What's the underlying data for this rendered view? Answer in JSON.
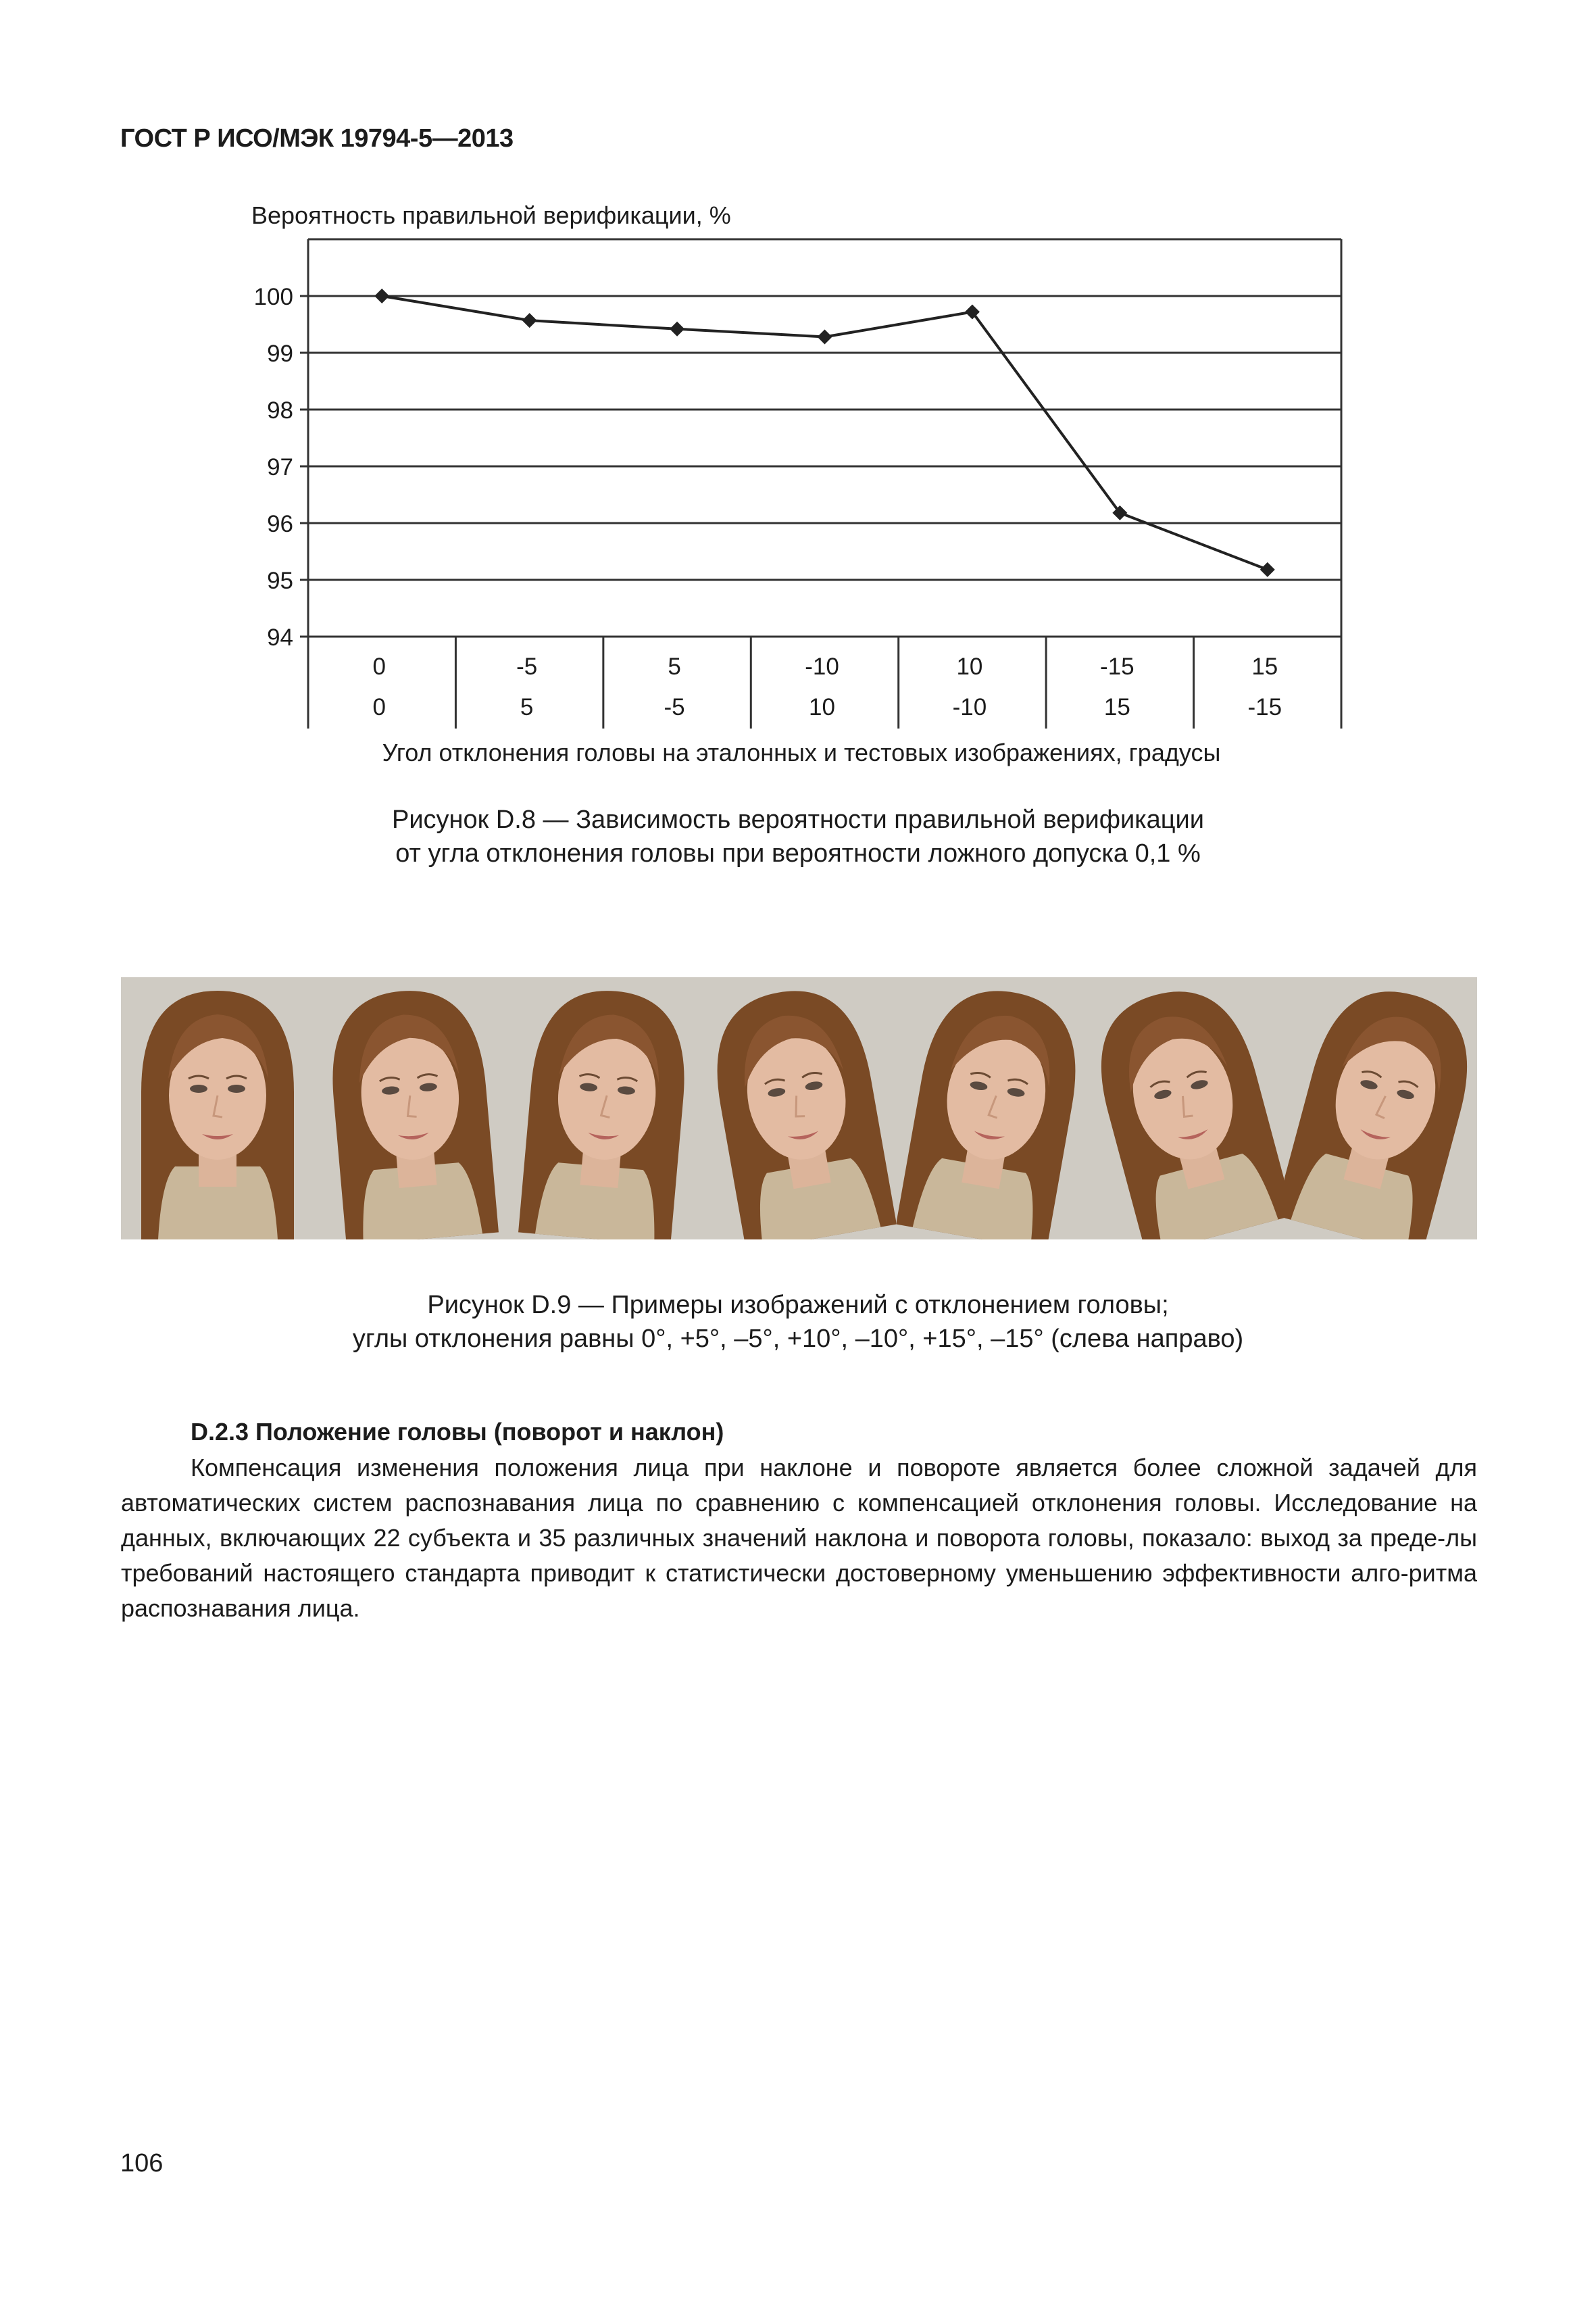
{
  "header": {
    "doc_id": "ГОСТ Р ИСО/МЭК 19794-5—2013"
  },
  "figure_d8": {
    "caption_line1": "Рисунок D.8 — Зависимость вероятности правильной верификации",
    "caption_line2": "от угла отклонения головы при вероятности ложного допуска 0,1 %"
  },
  "chart_data": {
    "type": "line",
    "ylabel": "Вероятность правильной верификации, %",
    "xlabel": "Угол отклонения головы на эталонных и тестовых изображениях, градусы",
    "ylim": [
      94,
      101
    ],
    "yticks": [
      100,
      99,
      98,
      97,
      96,
      95,
      94
    ],
    "categories_row1": [
      "0",
      "-5",
      "5",
      "-10",
      "10",
      "-15",
      "15"
    ],
    "categories_row2": [
      "0",
      "5",
      "-5",
      "10",
      "-10",
      "15",
      "-15"
    ],
    "series": [
      {
        "values": [
          100.0,
          99.57,
          99.42,
          99.28,
          99.72,
          96.18,
          95.18
        ]
      }
    ],
    "grid": true,
    "marker": "diamond",
    "line_color": "#222222"
  },
  "figure_d9": {
    "caption_line1": "Рисунок D.9 — Примеры изображений с отклонением головы;",
    "caption_line2": "углы отклонения равны 0°, +5°, –5°, +10°, –10°, +15°, –15° (слева направо)",
    "tilt_degrees": [
      0,
      5,
      -5,
      10,
      -10,
      15,
      -15
    ]
  },
  "section": {
    "title": "D.2.3 Положение головы (поворот и наклон)",
    "paragraph": "Компенсация изменения положения лица при наклоне и повороте является более сложной задачей для автоматических систем распознавания лица по сравнению с компенсацией отклонения головы. Исследование на данных, включающих 22 субъекта и 35 различных значений наклона и поворота головы, показало: выход за преде-лы требований настоящего стандарта приводит к статистически достоверному уменьшению эффективности алго-ритма распознавания лица."
  },
  "page_number": "106"
}
